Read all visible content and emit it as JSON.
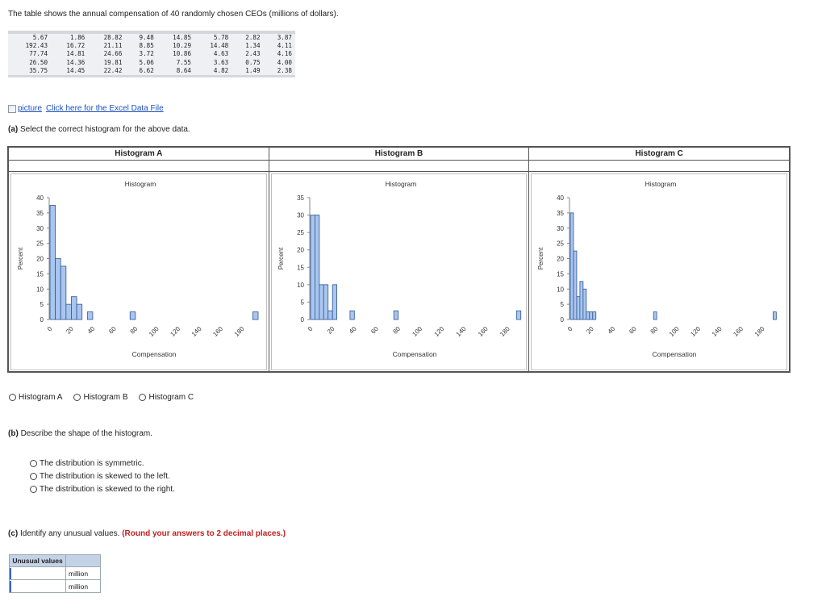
{
  "intro": "The table shows the annual compensation of 40 randomly chosen CEOs (millions of dollars).",
  "data_rows": [
    [
      "5.67",
      "1.86",
      "28.82",
      "9.48",
      "14.85",
      "5.78",
      "2.82",
      "3.87"
    ],
    [
      "192.43",
      "16.72",
      "21.11",
      "8.85",
      "10.29",
      "14.48",
      "1.34",
      "4.11"
    ],
    [
      "77.74",
      "14.81",
      "24.66",
      "3.72",
      "10.86",
      "4.63",
      "2.43",
      "4.16"
    ],
    [
      "26.50",
      "14.36",
      "19.81",
      "5.06",
      "7.55",
      "3.63",
      "0.75",
      "4.00"
    ],
    [
      "35.75",
      "14.45",
      "22.42",
      "6.62",
      "8.64",
      "4.82",
      "1.49",
      "2.38"
    ]
  ],
  "excel": {
    "img_alt": "picture",
    "link": "Click here for the Excel Data File"
  },
  "part_a": {
    "letter": "(a)",
    "text": "Select the correct histogram for the above data."
  },
  "histograms": [
    {
      "header": "Histogram A",
      "chart_title": "Histogram",
      "ylabel": "Percent",
      "xlabel": "Compensation",
      "yticks": [
        "0",
        "5",
        "10",
        "15",
        "20",
        "25",
        "30",
        "35",
        "40"
      ],
      "xticks": [
        "0",
        "20",
        "40",
        "60",
        "80",
        "100",
        "120",
        "140",
        "160",
        "180"
      ]
    },
    {
      "header": "Histogram B",
      "chart_title": "Histogram",
      "ylabel": "Percent",
      "xlabel": "Compensation",
      "yticks": [
        "0",
        "5",
        "10",
        "15",
        "20",
        "25",
        "30",
        "35"
      ],
      "xticks": [
        "0",
        "20",
        "40",
        "60",
        "80",
        "100",
        "120",
        "140",
        "160",
        "180"
      ]
    },
    {
      "header": "Histogram C",
      "chart_title": "Histogram",
      "ylabel": "Percent",
      "xlabel": "Compensation",
      "yticks": [
        "0",
        "5",
        "10",
        "15",
        "20",
        "25",
        "30",
        "35",
        "40"
      ],
      "xticks": [
        "0",
        "20",
        "40",
        "60",
        "80",
        "100",
        "120",
        "140",
        "160",
        "180"
      ]
    }
  ],
  "chart_data": [
    {
      "type": "bar",
      "title": "Histogram",
      "xlabel": "Compensation",
      "ylabel": "Percent",
      "xlim": [
        0,
        195
      ],
      "ylim": [
        0,
        40
      ],
      "bar_fill": "#a9c6ee",
      "bar_stroke": "#2f5597",
      "bins": [
        {
          "x0": 0,
          "x1": 5,
          "y": 37.5
        },
        {
          "x0": 5,
          "x1": 10,
          "y": 20
        },
        {
          "x0": 10,
          "x1": 15,
          "y": 17.5
        },
        {
          "x0": 15,
          "x1": 20,
          "y": 5
        },
        {
          "x0": 20,
          "x1": 25,
          "y": 7.5
        },
        {
          "x0": 25,
          "x1": 30,
          "y": 5
        },
        {
          "x0": 35,
          "x1": 40,
          "y": 2.5
        },
        {
          "x0": 75,
          "x1": 80,
          "y": 2.5
        },
        {
          "x0": 190,
          "x1": 195,
          "y": 2.5
        }
      ]
    },
    {
      "type": "bar",
      "title": "Histogram",
      "xlabel": "Compensation",
      "ylabel": "Percent",
      "xlim": [
        0,
        190
      ],
      "ylim": [
        0,
        35
      ],
      "bar_fill": "#a9c6ee",
      "bar_stroke": "#2f5597",
      "bins": [
        {
          "x0": 0,
          "x1": 4,
          "y": 30
        },
        {
          "x0": 4,
          "x1": 8,
          "y": 30
        },
        {
          "x0": 8,
          "x1": 12,
          "y": 10
        },
        {
          "x0": 12,
          "x1": 16,
          "y": 10
        },
        {
          "x0": 16,
          "x1": 20,
          "y": 2.5
        },
        {
          "x0": 20,
          "x1": 24,
          "y": 10
        },
        {
          "x0": 36,
          "x1": 40,
          "y": 2.5
        },
        {
          "x0": 76,
          "x1": 80,
          "y": 2.5
        },
        {
          "x0": 188,
          "x1": 192,
          "y": 2.5
        }
      ]
    },
    {
      "type": "bar",
      "title": "Histogram",
      "xlabel": "Compensation",
      "ylabel": "Percent",
      "xlim": [
        0,
        195
      ],
      "ylim": [
        0,
        40
      ],
      "bar_fill": "#a9c6ee",
      "bar_stroke": "#2f5597",
      "bins": [
        {
          "x0": 0,
          "x1": 3,
          "y": 35
        },
        {
          "x0": 3,
          "x1": 6,
          "y": 22.5
        },
        {
          "x0": 6,
          "x1": 9,
          "y": 7.5
        },
        {
          "x0": 9,
          "x1": 12,
          "y": 12.5
        },
        {
          "x0": 12,
          "x1": 15,
          "y": 10
        },
        {
          "x0": 15,
          "x1": 18,
          "y": 2.5
        },
        {
          "x0": 18,
          "x1": 21,
          "y": 2.5
        },
        {
          "x0": 21,
          "x1": 24,
          "y": 2.5
        },
        {
          "x0": 78,
          "x1": 81,
          "y": 2.5
        },
        {
          "x0": 190,
          "x1": 193,
          "y": 2.5
        }
      ]
    }
  ],
  "part_a_options": [
    "Histogram A",
    "Histogram B",
    "Histogram C"
  ],
  "part_b": {
    "letter": "(b)",
    "text": "Describe the shape of the histogram."
  },
  "part_b_options": [
    "The distribution is symmetric.",
    "The distribution is skewed to the left.",
    "The distribution is skewed to the right."
  ],
  "part_c": {
    "letter": "(c)",
    "text": "Identify any unusual values.",
    "note": "(Round your answers to 2 decimal places.)"
  },
  "unusual": {
    "header": "Unusual values",
    "unit": "million",
    "rows": 2
  }
}
